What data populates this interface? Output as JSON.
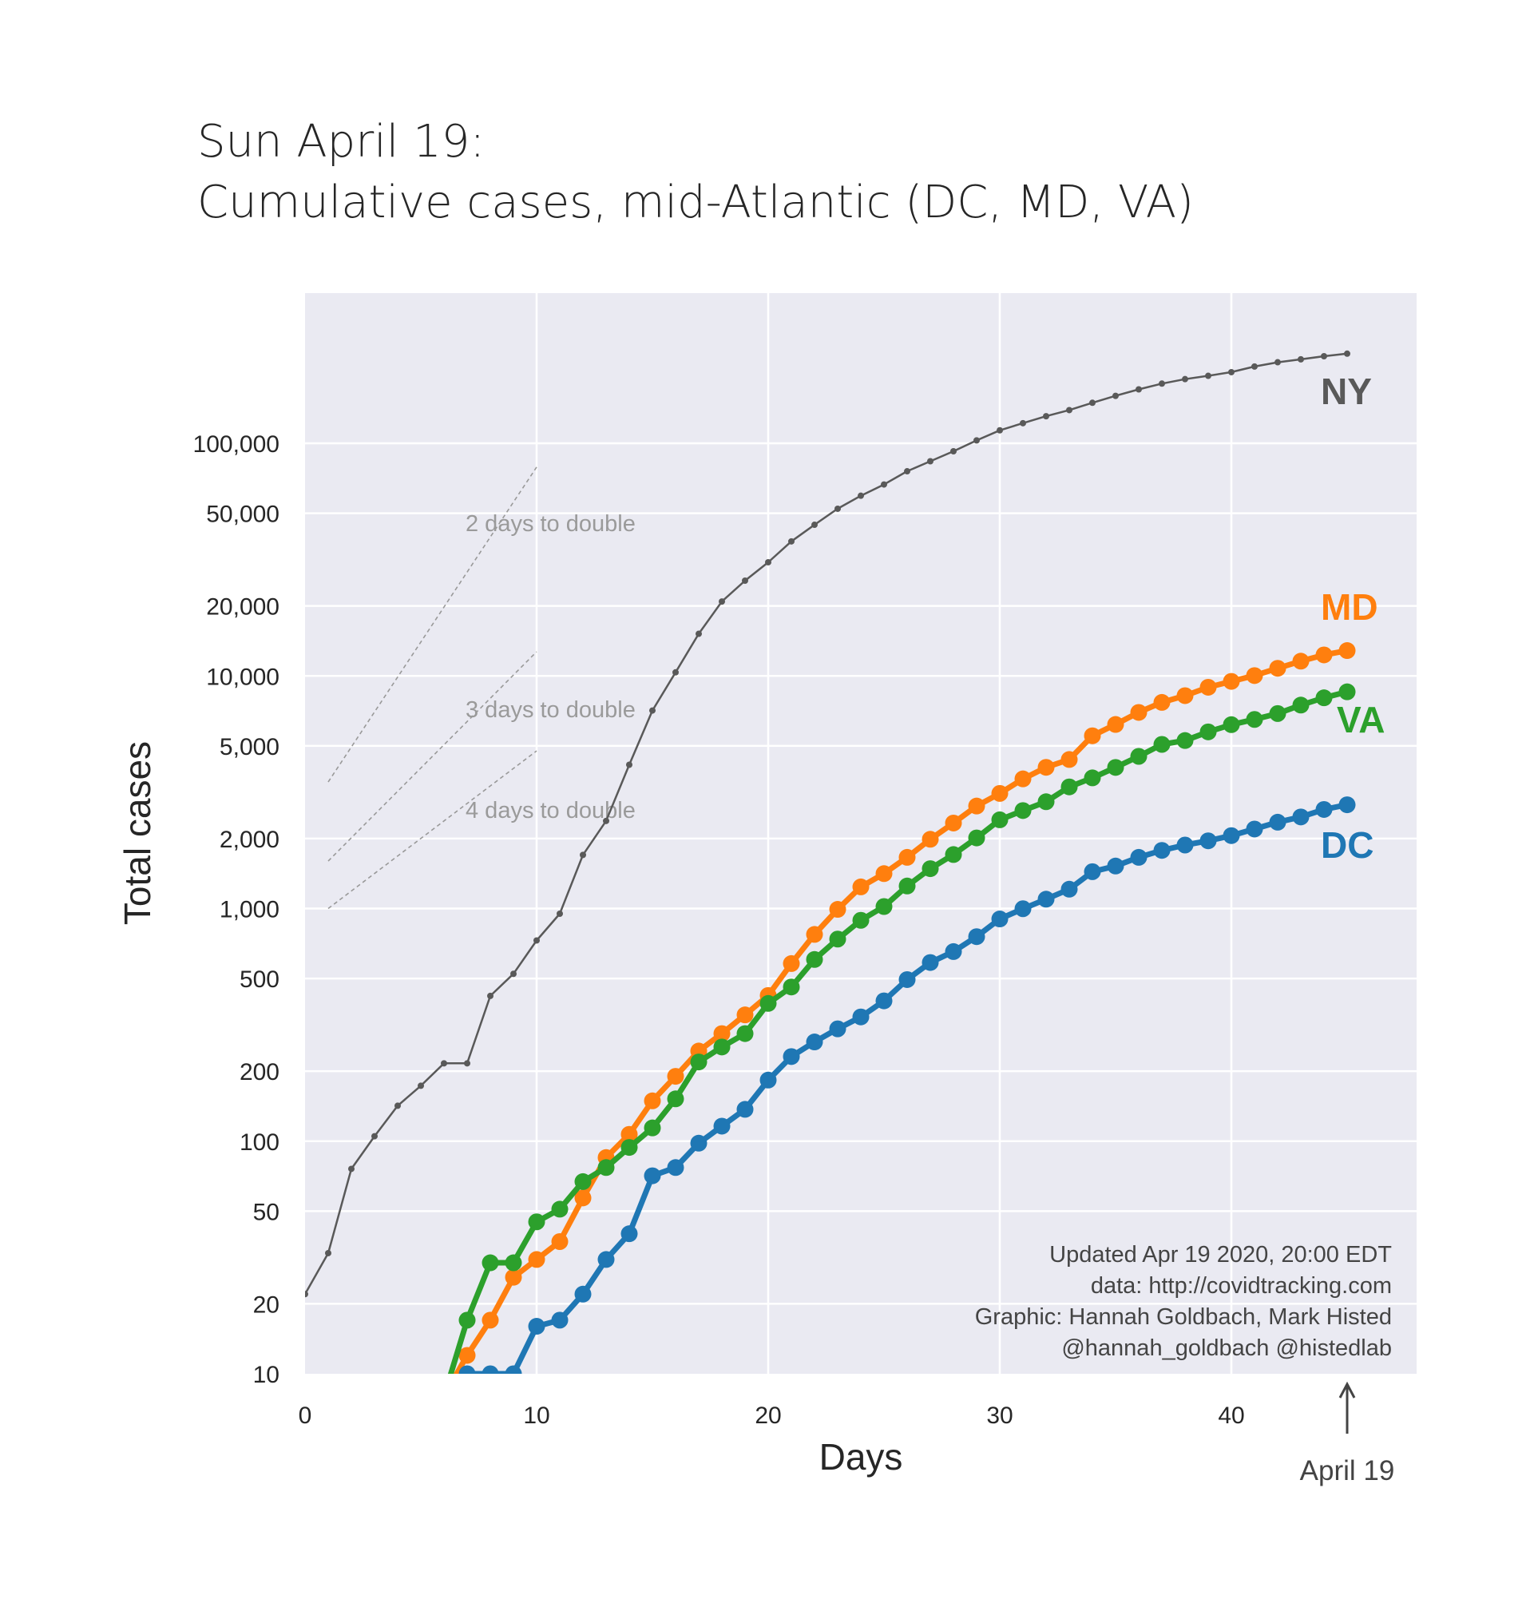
{
  "title": {
    "line1": "Sun April 19:",
    "line2": "Cumulative cases, mid-Atlantic (DC, MD, VA)"
  },
  "chart_data": {
    "type": "line",
    "xlabel": "Days",
    "ylabel": "Total cases",
    "yscale": "log",
    "xlim": [
      0,
      48
    ],
    "ylim": [
      10,
      600000
    ],
    "grid": true,
    "x_ticks": [
      0,
      10,
      20,
      30,
      40
    ],
    "y_ticks": [
      10,
      20,
      50,
      100,
      200,
      500,
      1000,
      2000,
      5000,
      10000,
      20000,
      50000,
      100000
    ],
    "y_tick_labels": [
      "10",
      "20",
      "50",
      "100",
      "200",
      "500",
      "1,000",
      "2,000",
      "5,000",
      "10,000",
      "20,000",
      "50,000",
      "100,000"
    ],
    "series": [
      {
        "name": "NY",
        "color": "#595959",
        "x": [
          0,
          1,
          2,
          3,
          4,
          5,
          6,
          7,
          8,
          9,
          10,
          11,
          12,
          13,
          14,
          15,
          16,
          17,
          18,
          19,
          20,
          21,
          22,
          23,
          24,
          25,
          26,
          27,
          28,
          29,
          30,
          31,
          32,
          33,
          34,
          35,
          36,
          37,
          38,
          39,
          40,
          41,
          42,
          43,
          44,
          45
        ],
        "values": [
          22,
          33,
          76,
          105,
          142,
          173,
          216,
          216,
          421,
          524,
          729,
          950,
          1700,
          2380,
          4150,
          7100,
          10360,
          15170,
          20880,
          25670,
          30800,
          37870,
          44630,
          52320,
          59510,
          66500,
          75800,
          83700,
          92400,
          102900,
          113700,
          122000,
          130700,
          138900,
          149300,
          159900,
          170500,
          180500,
          188700,
          195000,
          202200,
          213800,
          223000,
          229600,
          236700,
          242800
        ]
      },
      {
        "name": "MD",
        "color": "#ff7f0e",
        "x": [
          6,
          7,
          8,
          9,
          10,
          11,
          12,
          13,
          14,
          15,
          16,
          17,
          18,
          19,
          20,
          21,
          22,
          23,
          24,
          25,
          26,
          27,
          28,
          29,
          30,
          31,
          32,
          33,
          34,
          35,
          36,
          37,
          38,
          39,
          40,
          41,
          42,
          43,
          44,
          45
        ],
        "values": [
          8,
          12,
          17,
          26,
          31,
          37,
          57,
          85,
          107,
          149,
          190,
          244,
          290,
          349,
          423,
          580,
          774,
          992,
          1239,
          1413,
          1660,
          1985,
          2331,
          2758,
          3125,
          3609,
          4045,
          4371,
          5529,
          6185,
          6968,
          7694,
          8225,
          8936,
          9472,
          10032,
          10784,
          11572,
          12308,
          12847
        ]
      },
      {
        "name": "VA",
        "color": "#2ca02c",
        "x": [
          6,
          7,
          8,
          9,
          10,
          11,
          12,
          13,
          14,
          15,
          16,
          17,
          18,
          19,
          20,
          21,
          22,
          23,
          24,
          25,
          26,
          27,
          28,
          29,
          30,
          31,
          32,
          33,
          34,
          35,
          36,
          37,
          38,
          39,
          40,
          41,
          42,
          43,
          44,
          45
        ],
        "values": [
          8,
          17,
          30,
          30,
          45,
          51,
          67,
          77,
          94,
          114,
          152,
          219,
          254,
          290,
          391,
          460,
          604,
          739,
          890,
          1020,
          1250,
          1484,
          1706,
          2012,
          2407,
          2637,
          2878,
          3333,
          3645,
          4042,
          4509,
          5077,
          5274,
          5747,
          6171,
          6500,
          6889,
          7491,
          8053,
          8542
        ]
      },
      {
        "name": "DC",
        "color": "#1f77b4",
        "x": [
          6,
          7,
          8,
          9,
          10,
          11,
          12,
          13,
          14,
          15,
          16,
          17,
          18,
          19,
          20,
          21,
          22,
          23,
          24,
          25,
          26,
          27,
          28,
          29,
          30,
          31,
          32,
          33,
          34,
          35,
          36,
          37,
          38,
          39,
          40,
          41,
          42,
          43,
          44,
          45
        ],
        "values": [
          8,
          10,
          10,
          10,
          16,
          17,
          22,
          31,
          40,
          71,
          77,
          98,
          116,
          137,
          183,
          231,
          267,
          304,
          342,
          401,
          495,
          586,
          653,
          757,
          902,
          998,
          1097,
          1211,
          1440,
          1523,
          1660,
          1778,
          1875,
          1955,
          2058,
          2197,
          2350,
          2476,
          2666,
          2793
        ]
      }
    ],
    "doubling_lines": [
      {
        "label": "2 days to double",
        "x": [
          1,
          10
        ],
        "values": [
          3500,
          79000
        ]
      },
      {
        "label": "3 days to double",
        "x": [
          1,
          10
        ],
        "values": [
          1600,
          12700
        ]
      },
      {
        "label": "4 days to double",
        "x": [
          1,
          10
        ],
        "values": [
          1000,
          4760
        ]
      }
    ],
    "annotation": {
      "label": "April 19",
      "x": 45
    },
    "credits": [
      "Updated Apr 19 2020, 20:00 EDT",
      "data: http://covidtracking.com",
      "Graphic: Hannah Goldbach, Mark Histed",
      "@hannah_goldbach @histedlab"
    ]
  }
}
